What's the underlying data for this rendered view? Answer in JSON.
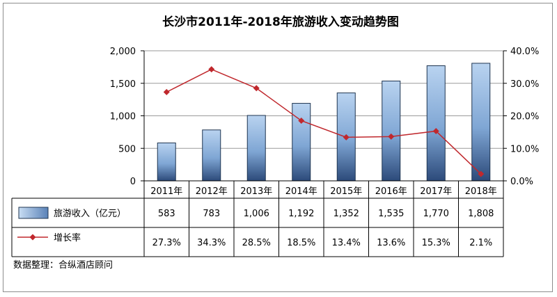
{
  "chart_data": {
    "type": "bar+line",
    "title": "长沙市2011年-2018年旅游收入变动趋势图",
    "categories": [
      "2011年",
      "2012年",
      "2013年",
      "2014年",
      "2015年",
      "2016年",
      "2017年",
      "2018年"
    ],
    "series": [
      {
        "name": "旅游收入（亿元）",
        "type": "bar",
        "axis": "left",
        "values": [
          583,
          783,
          1006,
          1192,
          1352,
          1535,
          1770,
          1808
        ],
        "labels": [
          "583",
          "783",
          "1,006",
          "1,192",
          "1,352",
          "1,535",
          "1,770",
          "1,808"
        ],
        "color": "#7fa7d6"
      },
      {
        "name": "增长率",
        "type": "line",
        "axis": "right",
        "values": [
          27.3,
          34.3,
          28.5,
          18.5,
          13.4,
          13.6,
          15.3,
          2.1
        ],
        "labels": [
          "27.3%",
          "34.3%",
          "28.5%",
          "18.5%",
          "13.4%",
          "13.6%",
          "15.3%",
          "2.1%"
        ],
        "color": "#c0282d"
      }
    ],
    "y_left": {
      "ylim": [
        0,
        2000
      ],
      "ticks": [
        "0",
        "500",
        "1,000",
        "1,500",
        "2,000"
      ]
    },
    "y_right": {
      "ylim": [
        0,
        40
      ],
      "ticks": [
        "0.0%",
        "10.0%",
        "20.0%",
        "30.0%",
        "40.0%"
      ]
    },
    "grid": true,
    "legend": "data-table",
    "source": "数据整理：合纵酒店顾问"
  }
}
